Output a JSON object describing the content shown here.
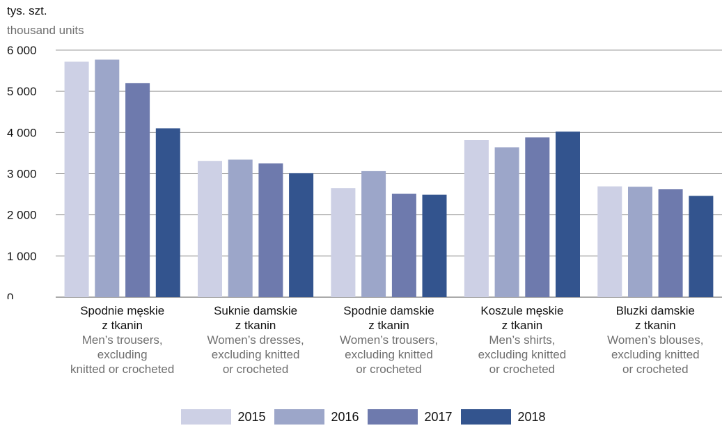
{
  "chart_data": {
    "type": "bar",
    "unit_label_pl": "tys. szt.",
    "unit_label_en": "thousand units",
    "ylim": [
      0,
      6000
    ],
    "yticks": [
      0,
      1000,
      2000,
      3000,
      4000,
      5000,
      6000
    ],
    "ytick_labels": [
      "0",
      "1 000",
      "2 000",
      "3 000",
      "4 000",
      "5 000",
      "6 000"
    ],
    "grid": true,
    "legend_position": "bottom",
    "categories": [
      {
        "pl": [
          "Spodnie męskie",
          "z tkanin"
        ],
        "en": [
          "Men’s trousers,",
          "excluding",
          "knitted or crocheted"
        ]
      },
      {
        "pl": [
          "Suknie damskie",
          "z tkanin"
        ],
        "en": [
          "Women’s  dresses,",
          "excluding knitted",
          "or crocheted"
        ]
      },
      {
        "pl": [
          "Spodnie  damskie",
          "z tkanin"
        ],
        "en": [
          "Women’s trousers,",
          "excluding knitted",
          "or crocheted"
        ]
      },
      {
        "pl": [
          "Koszule męskie",
          "z tkanin"
        ],
        "en": [
          "Men’s shirts,",
          "excluding knitted",
          "or crocheted"
        ]
      },
      {
        "pl": [
          "Bluzki damskie",
          "z tkanin"
        ],
        "en": [
          "Women’s blouses,",
          "excluding knitted",
          "or crocheted"
        ]
      }
    ],
    "series": [
      {
        "name": "2015",
        "color": "#cdd0e5",
        "values": [
          5720,
          3310,
          2650,
          3820,
          2690
        ]
      },
      {
        "name": "2016",
        "color": "#9ca6c9",
        "values": [
          5770,
          3340,
          3060,
          3640,
          2680
        ]
      },
      {
        "name": "2017",
        "color": "#6e7aad",
        "values": [
          5200,
          3250,
          2510,
          3880,
          2620
        ]
      },
      {
        "name": "2018",
        "color": "#33548e",
        "values": [
          4100,
          3010,
          2490,
          4020,
          2460
        ]
      }
    ]
  }
}
